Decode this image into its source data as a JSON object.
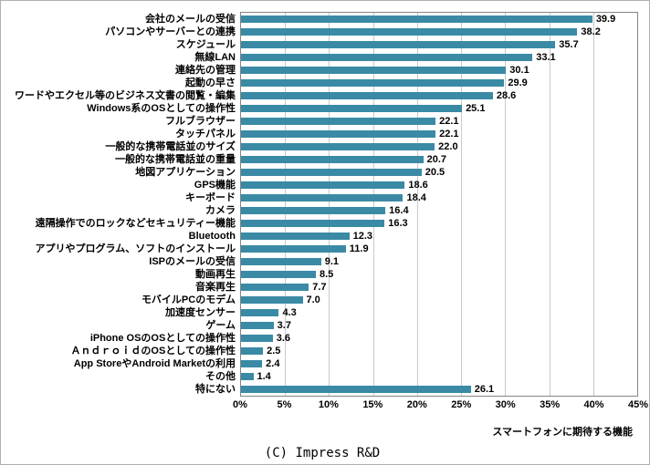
{
  "chart_data": {
    "type": "bar",
    "orientation": "horizontal",
    "categories": [
      "会社のメールの受信",
      "パソコンやサーバーとの連携",
      "スケジュール",
      "無線LAN",
      "連絡先の管理",
      "起動の早さ",
      "ワードやエクセル等のビジネス文書の閲覧・編集",
      "Windows系のOSとしての操作性",
      "フルブラウザー",
      "タッチパネル",
      "一般的な携帯電話並のサイズ",
      "一般的な携帯電話並の重量",
      "地図アプリケーション",
      "GPS機能",
      "キーボード",
      "カメラ",
      "遠隔操作でのロックなどセキュリティー機能",
      "Bluetooth",
      "アプリやプログラム、ソフトのインストール",
      "ISPのメールの受信",
      "動画再生",
      "音楽再生",
      "モバイルPCのモデム",
      "加速度センサー",
      "ゲーム",
      "iPhone OSのOSとしての操作性",
      "ＡｎｄｒｏｉｄのOSとしての操作性",
      "App StoreやAndroid Marketの利用",
      "その他",
      "特にない"
    ],
    "values": [
      39.9,
      38.2,
      35.7,
      33.1,
      30.1,
      29.9,
      28.6,
      25.1,
      22.1,
      22.1,
      22.0,
      20.7,
      20.5,
      18.6,
      18.4,
      16.4,
      16.3,
      12.3,
      11.9,
      9.1,
      8.5,
      7.7,
      7.0,
      4.3,
      3.7,
      3.6,
      2.5,
      2.4,
      1.4,
      26.1
    ],
    "x_ticks": [
      "0%",
      "5%",
      "10%",
      "15%",
      "20%",
      "25%",
      "30%",
      "35%",
      "40%",
      "45%"
    ],
    "xlim": [
      0,
      45
    ],
    "xlabel": "スマートフォンに期待する機能",
    "credit": "(C) Impress R&D",
    "bar_color": "#3a8aa5",
    "gridline_color": "#c9c9c9",
    "grid": true,
    "legend": "none"
  }
}
